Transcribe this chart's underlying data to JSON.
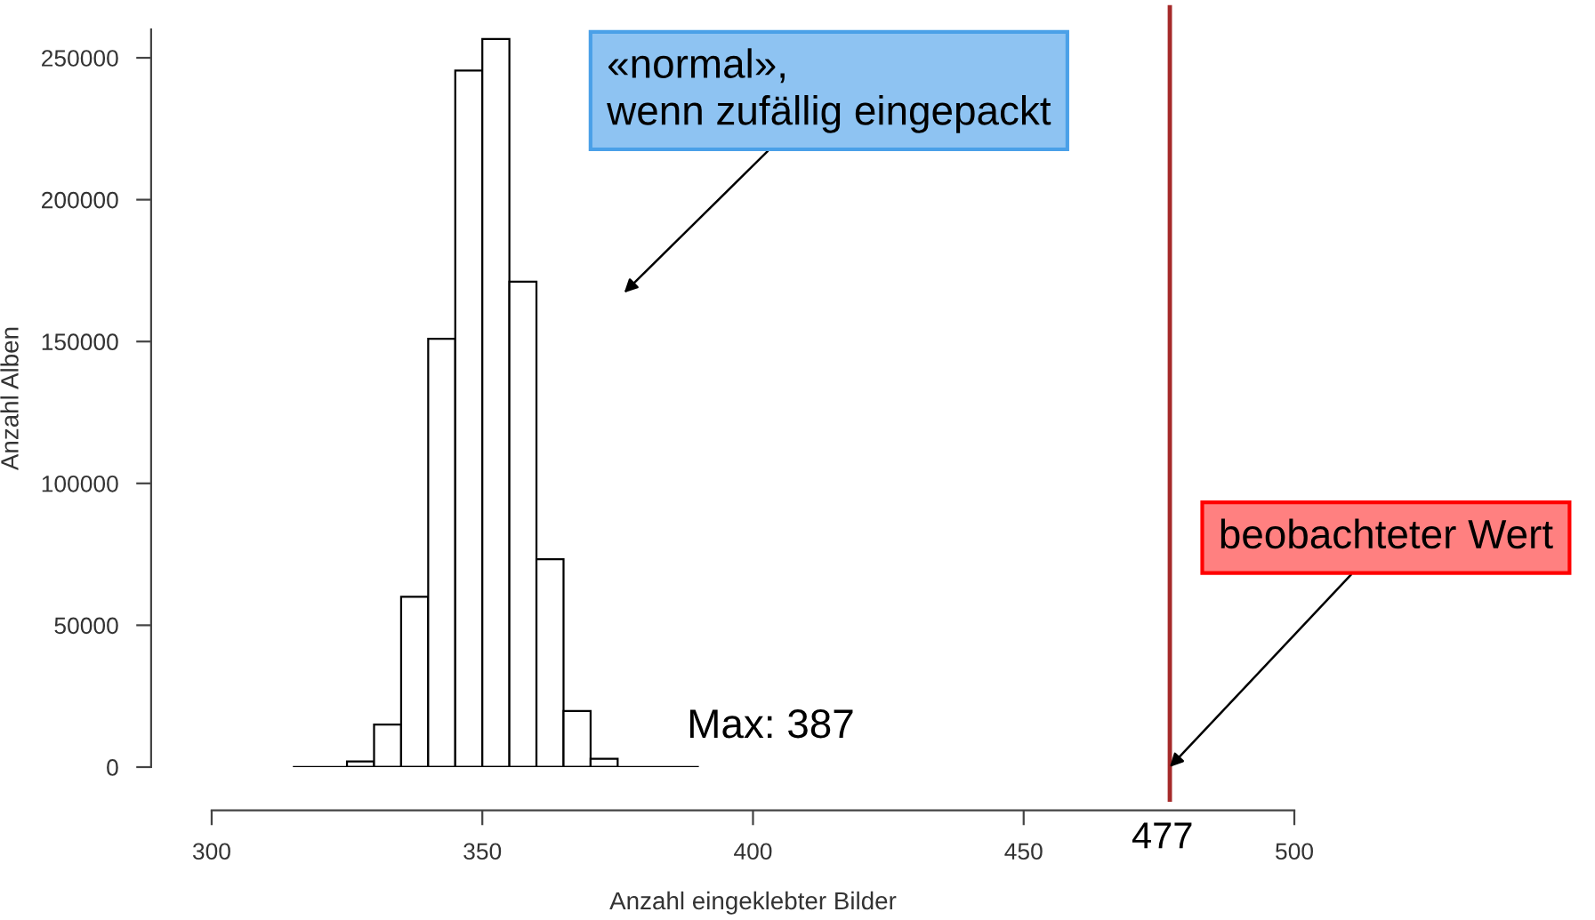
{
  "chart_data": {
    "type": "histogram",
    "xlabel": "Anzahl eingeklebter Bilder",
    "ylabel": "Anzahl Alben",
    "bins": [
      315,
      320,
      325,
      330,
      335,
      340,
      345,
      350,
      355,
      360,
      365,
      370,
      375,
      380,
      385,
      390
    ],
    "values": [
      0,
      null,
      2000,
      15000,
      60000,
      151000,
      245500,
      256600,
      171100,
      73300,
      19800,
      2900,
      null,
      0,
      0
    ],
    "color": "#ffffff",
    "xlim": [
      300,
      500
    ],
    "xticks": [
      300,
      350,
      400,
      450,
      500
    ],
    "ylim": [
      0,
      260000
    ],
    "yticks": [
      0,
      50000,
      100000,
      150000,
      200000,
      250000
    ],
    "grid": false,
    "ref_lines": [
      {
        "axis": "x",
        "value": 477,
        "label": "477",
        "color": "#a52a2a"
      }
    ],
    "annotations": [
      "«normal»,\nwenn zufällig eingepackt",
      {
        "text": "beobachteter Wert",
        "x": 477,
        "y": 0
      },
      "Max: 387"
    ]
  }
}
